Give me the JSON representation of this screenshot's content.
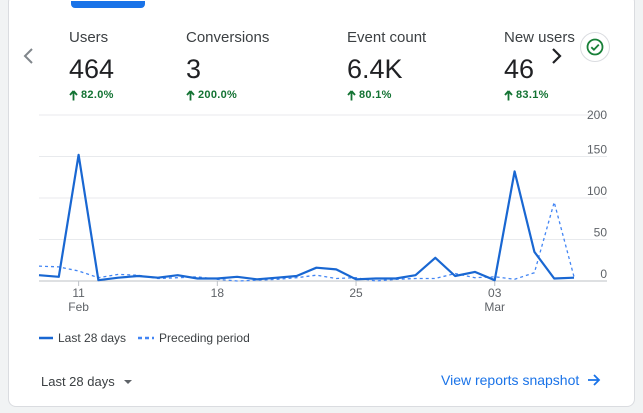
{
  "metrics": [
    {
      "label": "Users",
      "value": "464",
      "change": "82.0%",
      "active": true
    },
    {
      "label": "Conversions",
      "value": "3",
      "change": "200.0%",
      "active": false
    },
    {
      "label": "Event count",
      "value": "6.4K",
      "change": "80.1%",
      "active": false
    },
    {
      "label": "New users",
      "value": "46",
      "change": "83.1%",
      "active": false
    }
  ],
  "chart_data": {
    "type": "line",
    "x_tick_labels": [
      {
        "day": "11",
        "month": "Feb"
      },
      {
        "day": "18",
        "month": ""
      },
      {
        "day": "25",
        "month": ""
      },
      {
        "day": "03",
        "month": "Mar"
      }
    ],
    "y_ticks": [
      "200",
      "150",
      "100",
      "50",
      "0"
    ],
    "ylim": [
      0,
      200
    ],
    "series": [
      {
        "name": "Last 28 days",
        "style": "solid",
        "color": "#1967d2",
        "values": [
          7,
          5,
          152,
          1,
          4,
          6,
          4,
          7,
          3,
          3,
          5,
          2,
          4,
          6,
          16,
          14,
          2,
          3,
          3,
          7,
          28,
          6,
          11,
          1,
          132,
          35,
          3,
          4
        ]
      },
      {
        "name": "Preceding period",
        "style": "dashed",
        "color": "#4285f4",
        "values": [
          18,
          17,
          12,
          4,
          8,
          7,
          3,
          4,
          5,
          2,
          0,
          1,
          2,
          4,
          7,
          3,
          4,
          0,
          2,
          3,
          3,
          9,
          4,
          5,
          2,
          10,
          95,
          5
        ]
      }
    ]
  },
  "legend": {
    "current": "Last 28 days",
    "previous": "Preceding period"
  },
  "footer": {
    "date_range": "Last 28 days",
    "link": "View reports snapshot"
  },
  "colors": {
    "accent": "#1a73e8",
    "positive": "#137333",
    "gridline": "#e8eaed"
  }
}
